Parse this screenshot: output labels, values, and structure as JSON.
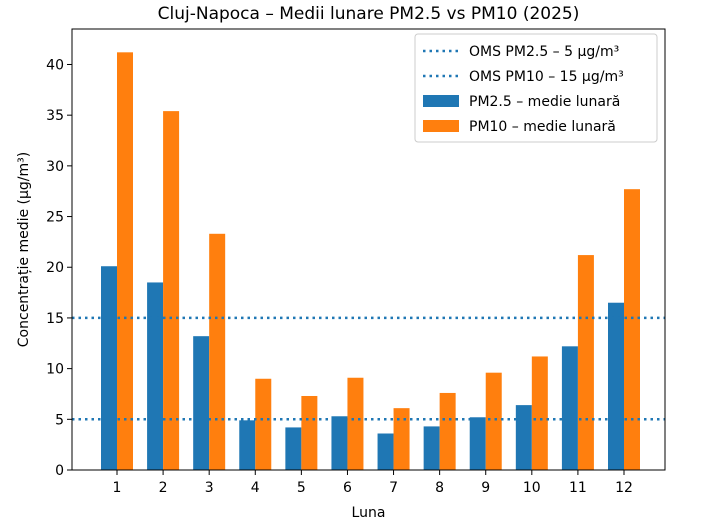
{
  "chart_data": {
    "type": "bar",
    "title": "Cluj-Napoca – Medii lunare PM2.5 vs PM10 (2025)",
    "xlabel": "Luna",
    "ylabel": "Concentrație medie (µg/m³)",
    "ylim": [
      0,
      43.5
    ],
    "yticks": [
      0,
      5,
      10,
      15,
      20,
      25,
      30,
      35,
      40
    ],
    "categories": [
      "1",
      "2",
      "3",
      "4",
      "5",
      "6",
      "7",
      "8",
      "9",
      "10",
      "11",
      "12"
    ],
    "series": [
      {
        "name": "PM2.5 – medie lunară",
        "color": "#1f77b4",
        "values": [
          20.1,
          18.5,
          13.2,
          4.9,
          4.2,
          5.3,
          3.6,
          4.3,
          5.2,
          6.4,
          12.2,
          16.5
        ]
      },
      {
        "name": "PM10 – medie lunară",
        "color": "#ff7f0e",
        "values": [
          41.2,
          35.4,
          23.3,
          9.0,
          7.3,
          9.1,
          6.1,
          7.6,
          9.6,
          11.2,
          21.2,
          27.7
        ]
      }
    ],
    "reference_lines": [
      {
        "name": "OMS PM2.5 – 5 µg/m³",
        "value": 5,
        "color": "#1f77b4",
        "style": "dotted"
      },
      {
        "name": "OMS PM10 – 15 µg/m³",
        "value": 15,
        "color": "#1f77b4",
        "style": "dotted"
      }
    ],
    "legend_position": "top-right",
    "grid": false
  }
}
